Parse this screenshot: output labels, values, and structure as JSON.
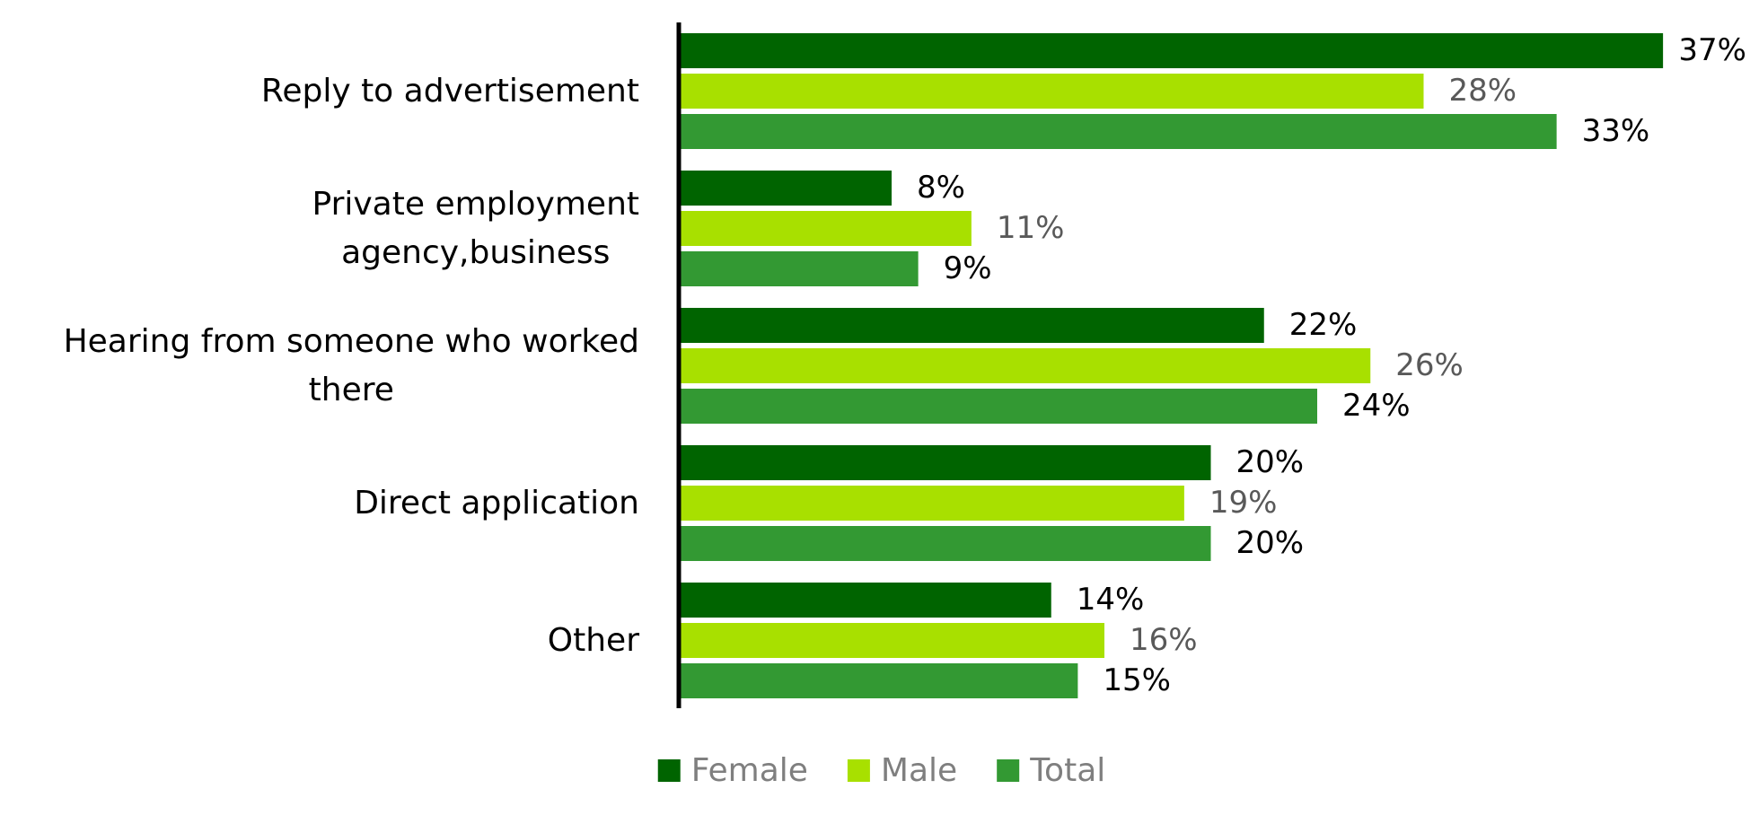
{
  "chart_data": {
    "type": "bar",
    "orientation": "horizontal",
    "categories": [
      "Reply to advertisement",
      "Private employment\nagency,business",
      "Hearing from someone who worked\nthere",
      "Direct application",
      "Other"
    ],
    "series": [
      {
        "name": "Female",
        "color": "#006400",
        "label_color": "#000000",
        "values": [
          37,
          8,
          22,
          20,
          14
        ],
        "value_labels": [
          "37%",
          "8%",
          "22%",
          "20%",
          "14%"
        ]
      },
      {
        "name": "Male",
        "color": "#a8e000",
        "label_color": "#595959",
        "values": [
          28,
          11,
          26,
          19,
          16
        ],
        "value_labels": [
          "28%",
          "11%",
          "26%",
          "19%",
          "16%"
        ]
      },
      {
        "name": "Total",
        "color": "#339933",
        "label_color": "#000000",
        "values": [
          33,
          9,
          24,
          20,
          15
        ],
        "value_labels": [
          "33%",
          "9%",
          "24%",
          "20%",
          "15%"
        ]
      }
    ],
    "xlim": [
      0,
      40
    ],
    "legend": "bottom"
  }
}
